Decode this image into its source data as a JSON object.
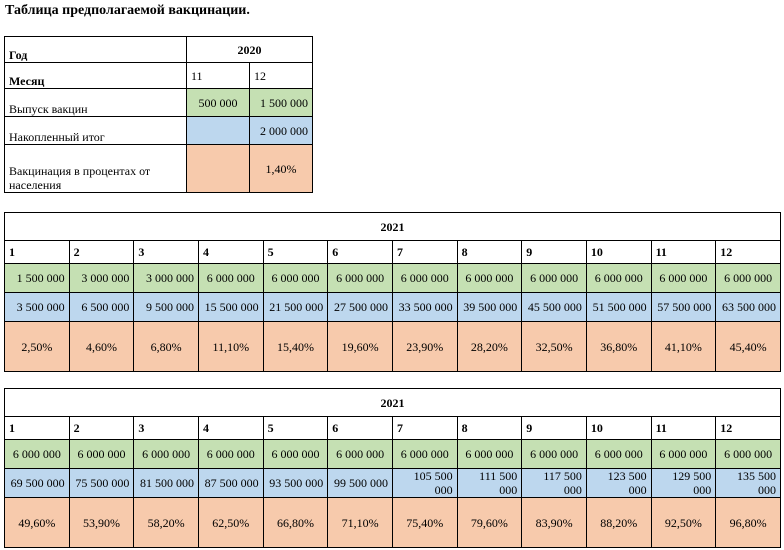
{
  "title": "Таблица предполагаемой вакцинации.",
  "table2020": {
    "year_label": "Год",
    "year": "2020",
    "month_label": "Месяц",
    "months": [
      "11",
      "12"
    ],
    "release_label": "Выпуск вакцин",
    "release": [
      "500 000",
      "1 500 000"
    ],
    "accum_label": "Накопленный итог",
    "accum": [
      "",
      "2 000 000"
    ],
    "percent_label": "Вакцинация в процентах от населения",
    "percent": [
      "",
      "1,40%"
    ]
  },
  "table2021a": {
    "year": "2021",
    "months": [
      "1",
      "2",
      "3",
      "4",
      "5",
      "6",
      "7",
      "8",
      "9",
      "10",
      "11",
      "12"
    ],
    "release": [
      "1 500 000",
      "3 000 000",
      "3 000 000",
      "6 000 000",
      "6 000 000",
      "6 000 000",
      "6 000 000",
      "6 000 000",
      "6 000 000",
      "6 000 000",
      "6 000 000",
      "6 000 000"
    ],
    "accum": [
      "3 500 000",
      "6 500 000",
      "9 500 000",
      "15 500 000",
      "21 500 000",
      "27 500 000",
      "33 500 000",
      "39 500 000",
      "45 500 000",
      "51 500 000",
      "57 500 000",
      "63 500 000"
    ],
    "percent": [
      "2,50%",
      "4,60%",
      "6,80%",
      "11,10%",
      "15,40%",
      "19,60%",
      "23,90%",
      "28,20%",
      "32,50%",
      "36,80%",
      "41,10%",
      "45,40%"
    ]
  },
  "table2021b": {
    "year": "2021",
    "months": [
      "1",
      "2",
      "3",
      "4",
      "5",
      "6",
      "7",
      "8",
      "9",
      "10",
      "11",
      "12"
    ],
    "release": [
      "6 000 000",
      "6 000 000",
      "6 000 000",
      "6 000 000",
      "6 000 000",
      "6 000 000",
      "6 000 000",
      "6 000 000",
      "6 000 000",
      "6 000 000",
      "6 000 000",
      "6 000 000"
    ],
    "accum": [
      "69 500 000",
      "75 500 000",
      "81 500 000",
      "87 500 000",
      "93 500 000",
      "99 500 000",
      "105 500 000",
      "111 500 000",
      "117 500 000",
      "123 500 000",
      "129 500 000",
      "135 500 000"
    ],
    "percent": [
      "49,60%",
      "53,90%",
      "58,20%",
      "62,50%",
      "66,80%",
      "71,10%",
      "75,40%",
      "79,60%",
      "83,90%",
      "88,20%",
      "92,50%",
      "96,80%"
    ]
  },
  "colors": {
    "release": "#c5e0b3",
    "accum": "#bdd7ee",
    "percent": "#f7caac"
  }
}
